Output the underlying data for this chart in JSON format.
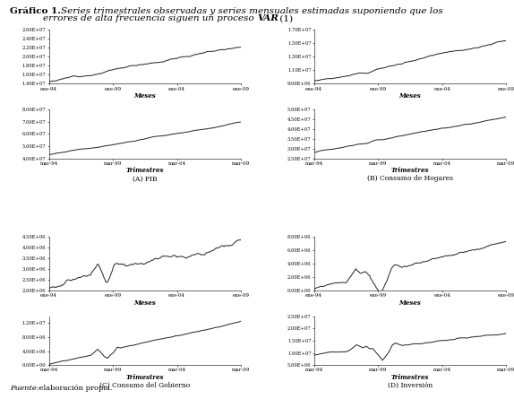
{
  "title_bold": "Gráfico 1.",
  "title_italic1": "Series trimestrales observadas y series mensuales estimadas suponiendo que los",
  "title_italic2": "errores de alta frecuencia siguen un proceso ",
  "title_var": "VAR",
  "title_end": " (1)",
  "subtitle_A": "(A) PIB",
  "subtitle_B": "(B) Consumo de Hogares",
  "subtitle_C": "(C) Consumo del Gobierno",
  "subtitle_D": "(D) Inversión",
  "xlabel_monthly": "Meses",
  "xlabel_quarterly": "Trimestres",
  "footer_italic": "Fuente:",
  "footer_normal": " elaboración propia.",
  "xticks_monthly": [
    "ene-94",
    "ene-99",
    "ene-04",
    "ene-09"
  ],
  "xticks_quarterly": [
    "mar-94",
    "mar-99",
    "mar-04",
    "mar-09"
  ],
  "panel_A_monthly_ylim": [
    14000000.0,
    26000000.0
  ],
  "panel_A_monthly_yticks": [
    14000000.0,
    16000000.0,
    18000000.0,
    20000000.0,
    22000000.0,
    24000000.0,
    26000000.0
  ],
  "panel_A_quarterly_ylim": [
    40000000.0,
    80000000.0
  ],
  "panel_A_quarterly_yticks": [
    40000000.0,
    50000000.0,
    60000000.0,
    70000000.0,
    80000000.0
  ],
  "panel_B_monthly_ylim": [
    9000000.0,
    17000000.0
  ],
  "panel_B_monthly_yticks": [
    9000000.0,
    11000000.0,
    13000000.0,
    15000000.0,
    17000000.0
  ],
  "panel_B_quarterly_ylim": [
    25000000.0,
    50000000.0
  ],
  "panel_B_quarterly_yticks": [
    25000000.0,
    30000000.0,
    35000000.0,
    40000000.0,
    45000000.0,
    50000000.0
  ],
  "panel_C_monthly_ylim": [
    2000000.0,
    4500000.0
  ],
  "panel_C_monthly_yticks": [
    2000000.0,
    2500000.0,
    3000000.0,
    3500000.0,
    4000000.0,
    4500000.0
  ],
  "panel_C_quarterly_ylim": [
    0.0,
    14000000.0
  ],
  "panel_C_quarterly_yticks": [
    0.0,
    4000000.0,
    8000000.0,
    12000000.0
  ],
  "panel_D_monthly_ylim": [
    0.0,
    8000000.0
  ],
  "panel_D_monthly_yticks": [
    0.0,
    2000000.0,
    4000000.0,
    6000000.0,
    8000000.0
  ],
  "panel_D_quarterly_ylim": [
    5000000.0,
    25000000.0
  ],
  "panel_D_quarterly_yticks": [
    5000000.0,
    10000000.0,
    15000000.0,
    20000000.0,
    25000000.0
  ],
  "line_color": "#222222",
  "line_width": 0.7,
  "n_monthly": 180,
  "n_quarterly": 60
}
